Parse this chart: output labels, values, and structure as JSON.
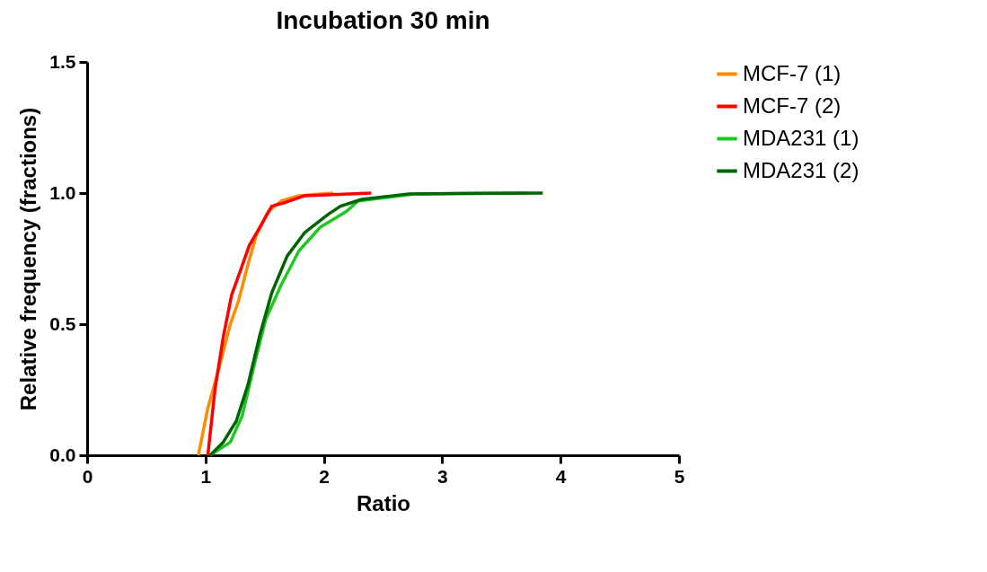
{
  "chart_data": {
    "type": "line",
    "title": "Incubation 30 min",
    "xlabel": "Ratio",
    "ylabel": "Relative frequency (fractions)",
    "xlim": [
      0,
      5
    ],
    "xticks": [
      0,
      1,
      2,
      3,
      4,
      5
    ],
    "ylim": [
      0,
      1.5
    ],
    "yticks": [
      {
        "value": 0,
        "label": "0.0"
      },
      0.5,
      {
        "value": 1,
        "label": "1.0"
      },
      1.5
    ],
    "grid": false,
    "legend": "right",
    "line_style": "solid",
    "marker": "none",
    "series": [
      {
        "name": "MCF-7 (1)",
        "color": "#ff8c00",
        "x": [
          0.94,
          1.02,
          1.07,
          1.13,
          1.21,
          1.28,
          1.36,
          1.43,
          1.53,
          1.64,
          1.79,
          2.08
        ],
        "values": [
          0,
          0.18,
          0.26,
          0.36,
          0.5,
          0.59,
          0.73,
          0.84,
          0.93,
          0.97,
          0.99,
          1.0
        ]
      },
      {
        "name": "MCF-7 (2)",
        "color": "#ff0000",
        "x": [
          1.02,
          1.08,
          1.15,
          1.22,
          1.3,
          1.37,
          1.46,
          1.56,
          1.68,
          1.84,
          2.4
        ],
        "values": [
          0,
          0.25,
          0.45,
          0.61,
          0.71,
          0.8,
          0.87,
          0.95,
          0.965,
          0.99,
          1.0
        ]
      },
      {
        "name": "MDA231 (1)",
        "color": "#1ec81e",
        "x": [
          1.04,
          1.21,
          1.31,
          1.41,
          1.51,
          1.64,
          1.79,
          1.97,
          2.19,
          2.29,
          2.57,
          2.78,
          3.71
        ],
        "values": [
          0,
          0.05,
          0.15,
          0.34,
          0.52,
          0.65,
          0.78,
          0.87,
          0.93,
          0.97,
          0.985,
          0.997,
          1.0
        ]
      },
      {
        "name": "MDA231 (2)",
        "color": "#006400",
        "x": [
          1.04,
          1.15,
          1.26,
          1.36,
          1.46,
          1.56,
          1.69,
          1.84,
          2.04,
          2.14,
          2.32,
          2.72,
          3.85
        ],
        "values": [
          0,
          0.05,
          0.13,
          0.27,
          0.46,
          0.62,
          0.76,
          0.85,
          0.92,
          0.95,
          0.976,
          0.997,
          1.0
        ]
      }
    ]
  }
}
